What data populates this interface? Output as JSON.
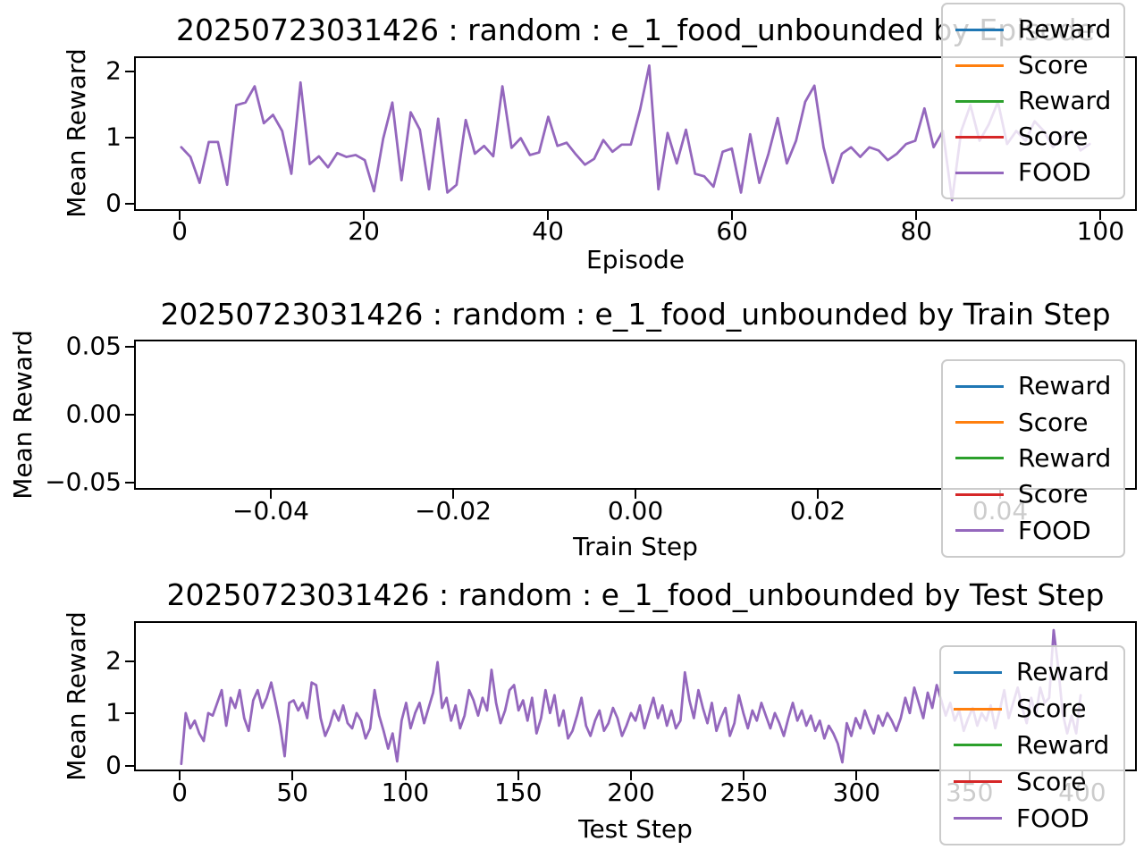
{
  "figure_note": "matplotlib-style figure, three stacked line subplots, white background",
  "accent_colors": {
    "line_visible": "#9467bd",
    "spine": "#000000",
    "legend_border": "#cbcbcb"
  },
  "legend_entries": [
    {
      "label": "Reward",
      "color": "#1f77b4"
    },
    {
      "label": "Score",
      "color": "#ff7f0e"
    },
    {
      "label": "Reward",
      "color": "#2ca02c"
    },
    {
      "label": "Score",
      "color": "#d62728"
    },
    {
      "label": "FOOD",
      "color": "#9467bd"
    }
  ],
  "chart_data": [
    {
      "id": "by-episode",
      "type": "line",
      "title": "20250723031426 : random : e_1_food_unbounded by Episode",
      "xlabel": "Episode",
      "ylabel": "Mean Reward",
      "xlim": [
        -4.95,
        103.95
      ],
      "ylim": [
        -0.106,
        2.226
      ],
      "grid": false,
      "legend_position": "upper right",
      "note": "Legend lists 5 series but only the purple FOOD line is visible (series overlap).",
      "xticks": [
        {
          "v": 0,
          "label": "0"
        },
        {
          "v": 20,
          "label": "20"
        },
        {
          "v": 40,
          "label": "40"
        },
        {
          "v": 60,
          "label": "60"
        },
        {
          "v": 80,
          "label": "80"
        },
        {
          "v": 100,
          "label": "100"
        }
      ],
      "yticks": [
        {
          "v": 0,
          "label": "0"
        },
        {
          "v": 1,
          "label": "1"
        },
        {
          "v": 2,
          "label": "2"
        }
      ],
      "series": [
        {
          "name": "FOOD",
          "color": "#9467bd",
          "x_start": 0,
          "x_step": 1,
          "values": [
            0.85,
            0.7,
            0.3,
            0.93,
            0.93,
            0.27,
            1.5,
            1.54,
            1.79,
            1.22,
            1.35,
            1.1,
            0.44,
            1.85,
            0.59,
            0.71,
            0.54,
            0.76,
            0.7,
            0.73,
            0.65,
            0.17,
            0.98,
            1.54,
            0.34,
            1.39,
            1.12,
            0.2,
            1.29,
            0.15,
            0.27,
            1.27,
            0.75,
            0.87,
            0.71,
            1.79,
            0.84,
            0.99,
            0.73,
            0.77,
            1.32,
            0.87,
            0.92,
            0.74,
            0.58,
            0.67,
            0.96,
            0.78,
            0.89,
            0.89,
            1.43,
            2.11,
            0.2,
            1.07,
            0.6,
            1.12,
            0.44,
            0.4,
            0.24,
            0.78,
            0.83,
            0.15,
            1.05,
            0.3,
            0.75,
            1.3,
            0.6,
            0.95,
            1.55,
            1.8,
            0.85,
            0.3,
            0.75,
            0.85,
            0.7,
            0.85,
            0.8,
            0.65,
            0.75,
            0.9,
            0.95,
            1.45,
            0.85,
            1.1,
            0.03,
            1.1,
            1.5,
            0.95,
            1.2,
            1.55,
            0.9,
            1.1,
            0.95,
            1.25,
            1.1,
            0.85,
            1.0,
            1.1,
            0.8,
            0.9
          ]
        }
      ]
    },
    {
      "id": "by-train-step",
      "type": "line",
      "title": "20250723031426 : random : e_1_food_unbounded by Train Step",
      "xlabel": "Train Step",
      "ylabel": "Mean Reward",
      "xlim": [
        -0.055,
        0.055
      ],
      "ylim": [
        -0.055,
        0.055
      ],
      "grid": false,
      "legend_position": "center right",
      "note": "Empty axes - no data plotted.",
      "xticks": [
        {
          "v": -0.04,
          "label": "−0.04"
        },
        {
          "v": -0.02,
          "label": "−0.02"
        },
        {
          "v": 0.0,
          "label": "0.00"
        },
        {
          "v": 0.02,
          "label": "0.02"
        },
        {
          "v": 0.04,
          "label": "0.04"
        }
      ],
      "yticks": [
        {
          "v": 0.05,
          "label": "0.05"
        },
        {
          "v": 0.0,
          "label": "0.00"
        },
        {
          "v": -0.05,
          "label": "−0.05"
        }
      ],
      "series": []
    },
    {
      "id": "by-test-step",
      "type": "line",
      "title": "20250723031426 : random : e_1_food_unbounded by Test Step",
      "xlabel": "Test Step",
      "ylabel": "Mean Reward",
      "xlim": [
        -20.2,
        424.2
      ],
      "ylim": [
        -0.11,
        2.77
      ],
      "grid": false,
      "legend_position": "lower right",
      "note": "Legend lists 5 series but only the purple FOOD line is visible (series overlap).",
      "xticks": [
        {
          "v": 0,
          "label": "0"
        },
        {
          "v": 50,
          "label": "50"
        },
        {
          "v": 100,
          "label": "100"
        },
        {
          "v": 150,
          "label": "150"
        },
        {
          "v": 200,
          "label": "200"
        },
        {
          "v": 250,
          "label": "250"
        },
        {
          "v": 300,
          "label": "300"
        },
        {
          "v": 350,
          "label": "350"
        },
        {
          "v": 400,
          "label": "400"
        }
      ],
      "yticks": [
        {
          "v": 0,
          "label": "0"
        },
        {
          "v": 1,
          "label": "1"
        },
        {
          "v": 2,
          "label": "2"
        }
      ],
      "series": [
        {
          "name": "FOOD",
          "color": "#9467bd",
          "x_start": 0,
          "x_step": 2,
          "values": [
            0.0,
            1.0,
            0.7,
            0.85,
            0.6,
            0.45,
            1.0,
            0.95,
            1.2,
            1.45,
            0.75,
            1.3,
            1.1,
            1.45,
            0.9,
            0.65,
            1.25,
            1.45,
            1.1,
            1.3,
            1.6,
            1.2,
            0.75,
            0.15,
            1.2,
            1.25,
            1.05,
            1.2,
            0.9,
            1.6,
            1.55,
            0.9,
            0.55,
            0.75,
            1.05,
            0.85,
            1.15,
            0.8,
            0.7,
            1.0,
            0.85,
            0.5,
            0.7,
            1.45,
            0.95,
            0.65,
            0.3,
            0.6,
            0.05,
            0.85,
            1.2,
            0.7,
            1.0,
            1.2,
            0.8,
            1.1,
            1.4,
            2.0,
            1.1,
            1.3,
            0.85,
            1.15,
            0.7,
            0.95,
            1.45,
            1.25,
            0.95,
            1.3,
            1.05,
            1.85,
            1.2,
            0.8,
            1.05,
            1.45,
            1.55,
            1.05,
            1.25,
            0.85,
            1.3,
            0.6,
            0.9,
            1.45,
            1.0,
            1.35,
            0.75,
            1.05,
            0.5,
            0.65,
            0.95,
            1.3,
            0.75,
            0.55,
            0.85,
            1.05,
            0.65,
            0.8,
            1.1,
            0.9,
            0.55,
            0.75,
            1.0,
            0.85,
            1.15,
            0.7,
            1.0,
            1.3,
            0.9,
            1.15,
            0.75,
            1.05,
            0.7,
            0.85,
            1.8,
            1.25,
            0.9,
            1.45,
            1.1,
            0.8,
            1.2,
            0.65,
            0.9,
            1.1,
            0.55,
            0.8,
            1.35,
            1.0,
            0.7,
            1.05,
            0.85,
            1.2,
            0.95,
            0.7,
            1.0,
            0.8,
            0.55,
            0.9,
            1.2,
            0.85,
            1.05,
            0.75,
            0.95,
            0.65,
            0.85,
            0.5,
            0.75,
            0.6,
            0.4,
            0.03,
            0.8,
            0.55,
            0.9,
            0.7,
            1.05,
            0.8,
            0.6,
            0.95,
            0.75,
            1.0,
            0.85,
            0.65,
            0.9,
            1.3,
            1.0,
            1.5,
            1.2,
            0.9,
            1.4,
            1.1,
            1.55,
            1.25,
            0.95,
            1.2,
            0.85,
            1.05,
            0.65,
            0.9,
            1.1,
            0.75,
            1.0,
            0.85,
            1.15,
            0.7,
            1.05,
            1.45,
            0.9,
            1.2,
            1.5,
            1.1,
            0.8,
            1.3,
            0.95,
            1.5,
            1.2,
            1.3,
            2.63,
            1.9,
            1.0,
            0.6,
            0.95,
            0.6,
            1.35
          ]
        }
      ]
    }
  ]
}
